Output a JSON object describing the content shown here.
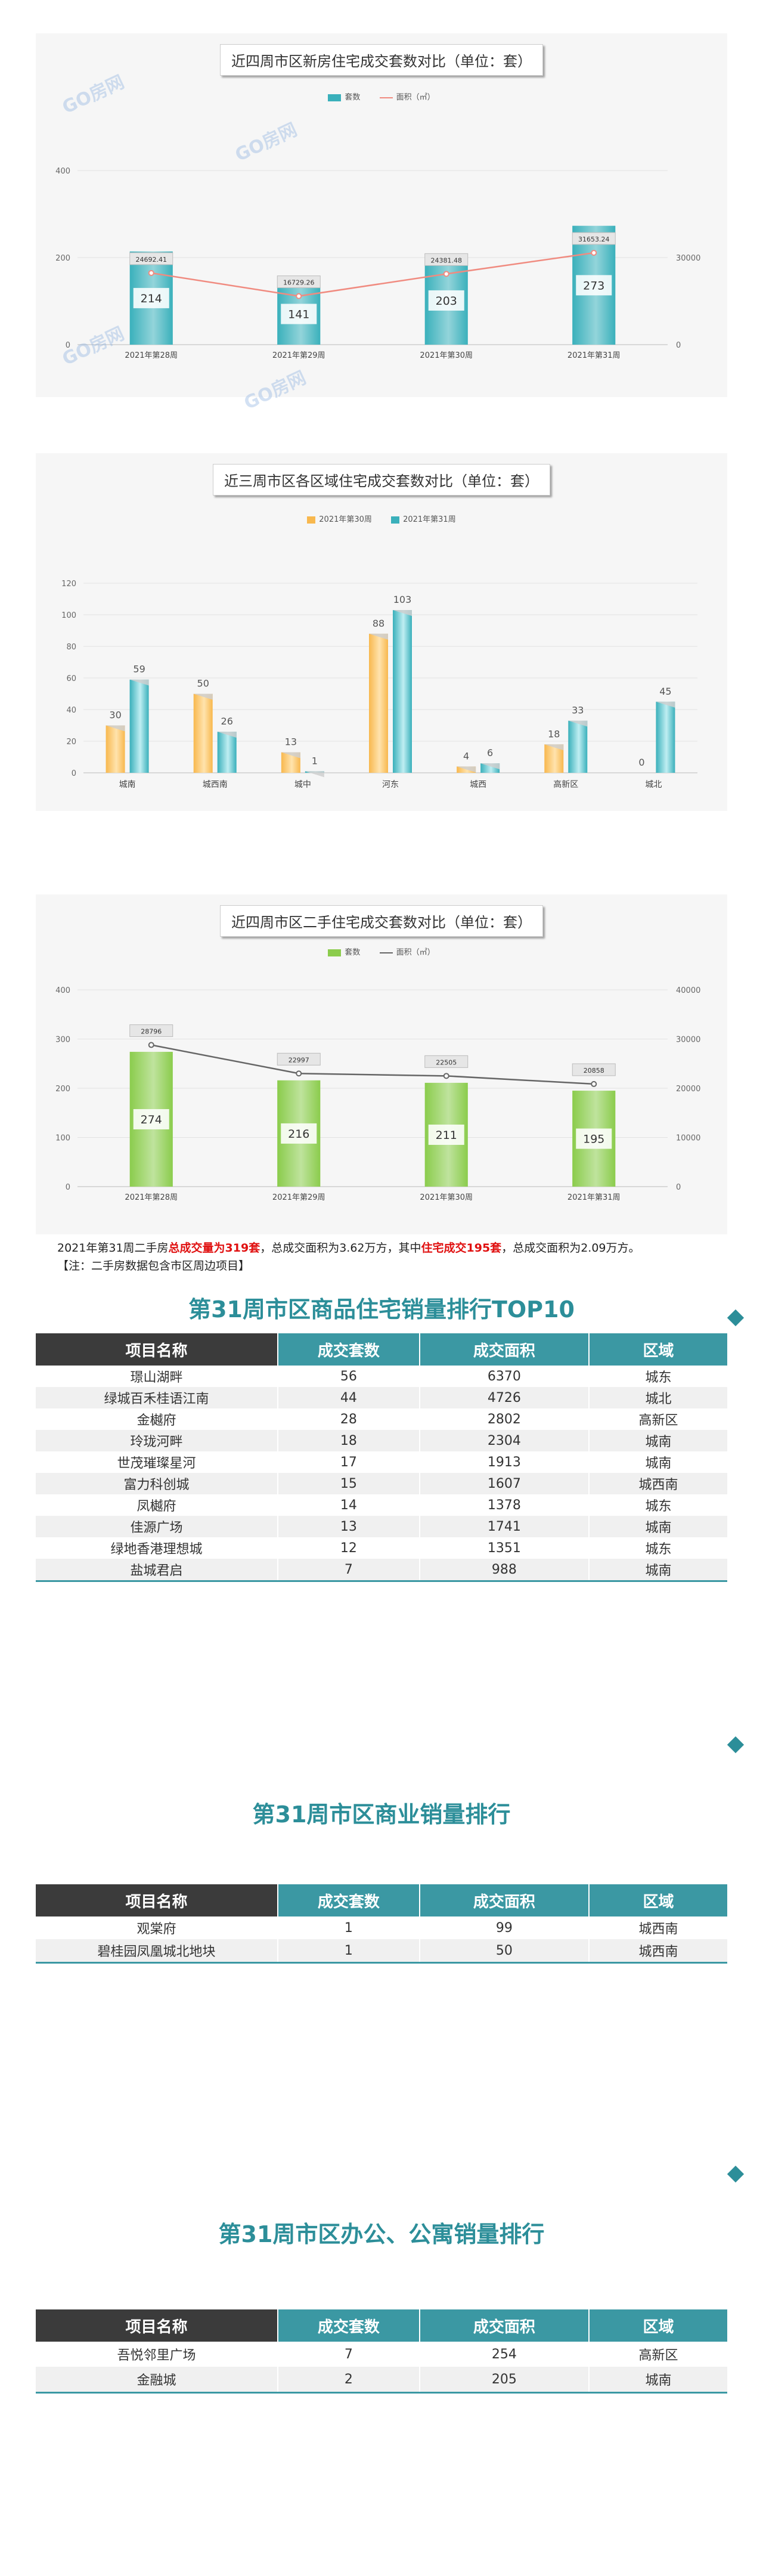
{
  "watermark": "GO房网",
  "chart_data": [
    {
      "type": "bar+line",
      "title": "近四周市区新房住宅成交套数对比（单位：套）",
      "legend": [
        "套数",
        "面积（㎡）"
      ],
      "categories": [
        "2021年第28周",
        "2021年第29周",
        "2021年第30周",
        "2021年第31周"
      ],
      "series": [
        {
          "name": "套数",
          "type": "bar",
          "axis": "left",
          "values": [
            214,
            141,
            203,
            273
          ]
        },
        {
          "name": "面积（㎡）",
          "type": "line",
          "axis": "right",
          "values": [
            24692.41,
            16729.26,
            24381.48,
            31653.24
          ]
        }
      ],
      "ylim": [
        0,
        400
      ],
      "yticks": [
        0,
        200,
        400
      ],
      "y2lim": [
        0,
        60000
      ],
      "y2ticks": [
        0,
        30000
      ],
      "colors": {
        "bar": "#3ab0bb",
        "line": "#f08b80"
      }
    },
    {
      "type": "bar",
      "title": "近三周市区各区域住宅成交套数对比（单位：套）",
      "legend": [
        "2021年第30周",
        "2021年第31周"
      ],
      "categories": [
        "城南",
        "城西南",
        "城中",
        "河东",
        "城西",
        "高新区",
        "城北"
      ],
      "series": [
        {
          "name": "2021年第30周",
          "values": [
            30,
            50,
            13,
            88,
            4,
            18,
            0
          ]
        },
        {
          "name": "2021年第31周",
          "values": [
            59,
            26,
            1,
            103,
            6,
            33,
            45
          ]
        }
      ],
      "ylim": [
        0,
        120
      ],
      "yticks": [
        0,
        20,
        40,
        60,
        80,
        100,
        120
      ],
      "colors": {
        "s1": "#f8b84e",
        "s2": "#3ab0bb"
      }
    },
    {
      "type": "bar+line",
      "title": "近四周市区二手住宅成交套数对比（单位：套）",
      "legend": [
        "套数",
        "面积（㎡）"
      ],
      "categories": [
        "2021年第28周",
        "2021年第29周",
        "2021年第30周",
        "2021年第31周"
      ],
      "series": [
        {
          "name": "套数",
          "type": "bar",
          "axis": "left",
          "values": [
            274,
            216,
            211,
            195
          ]
        },
        {
          "name": "面积（㎡）",
          "type": "line",
          "axis": "right",
          "values": [
            28796,
            22997,
            22505,
            20858
          ]
        }
      ],
      "ylim": [
        0,
        400
      ],
      "yticks": [
        0,
        100,
        200,
        300,
        400
      ],
      "y2lim": [
        0,
        40000
      ],
      "y2ticks": [
        0,
        10000,
        20000,
        30000,
        40000
      ],
      "colors": {
        "bar": "#8bcc4c",
        "line": "#666666"
      }
    }
  ],
  "note": {
    "p1": "2021年第31周二手房",
    "r1": "总成交量为319套",
    "p2": "，总成交面积为3.62万方，其中",
    "r2": "住宅成交195套",
    "p3": "，总成交面积为2.09万方。",
    "line2": "【注：二手房数据包含市区周边项目】"
  },
  "headers": [
    "项目名称",
    "成交套数",
    "成交面积",
    "区域"
  ],
  "tables": [
    {
      "title": "第31周市区商品住宅销量排行TOP10",
      "rows": [
        [
          "璟山湖畔",
          "56",
          "6370",
          "城东"
        ],
        [
          "绿城百禾桂语江南",
          "44",
          "4726",
          "城北"
        ],
        [
          "金樾府",
          "28",
          "2802",
          "高新区"
        ],
        [
          "玲珑河畔",
          "18",
          "2304",
          "城南"
        ],
        [
          "世茂璀璨星河",
          "17",
          "1913",
          "城南"
        ],
        [
          "富力科创城",
          "15",
          "1607",
          "城西南"
        ],
        [
          "凤樾府",
          "14",
          "1378",
          "城东"
        ],
        [
          "佳源广场",
          "13",
          "1741",
          "城南"
        ],
        [
          "绿地香港理想城",
          "12",
          "1351",
          "城东"
        ],
        [
          "盐城君启",
          "7",
          "988",
          "城南"
        ]
      ]
    },
    {
      "title": "第31周市区商业销量排行",
      "rows": [
        [
          "观棠府",
          "1",
          "99",
          "城西南"
        ],
        [
          "碧桂园凤凰城北地块",
          "1",
          "50",
          "城西南"
        ]
      ]
    },
    {
      "title": "第31周市区办公、公寓销量排行",
      "rows": [
        [
          "吾悦邻里广场",
          "7",
          "254",
          "高新区"
        ],
        [
          "金融城",
          "2",
          "205",
          "城南"
        ]
      ]
    }
  ]
}
